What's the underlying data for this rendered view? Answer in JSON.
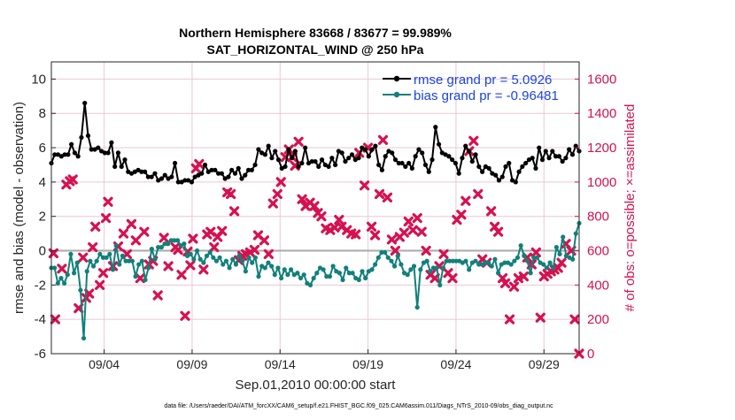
{
  "chart_data": {
    "type": "line",
    "title": "Northern Hemisphere 83668 / 83677 = 99.989%",
    "subtitle": "SAT_HORIZONTAL_WIND @ 250 hPa",
    "xlabel": "Sep.01,2010 00:00:00 start",
    "ylabel_left": "rmse and bias (model - observation)",
    "ylabel_right": "# of obs: o=possible; ×=assimilated",
    "footnote": "data file: /Users/raeder/DAI/ATM_forcXX/CAM6_setup/f.e21.FHIST_BGC.f09_025.CAM6assim.011/Diags_NTrS_2010-09/obs_diag_output.nc",
    "x_range_days": [
      1.0,
      31.0
    ],
    "ylim_left": [
      -6,
      11
    ],
    "ylim_right": [
      0,
      1700
    ],
    "x_ticks": [
      {
        "day": 4,
        "label": "09/04"
      },
      {
        "day": 9,
        "label": "09/09"
      },
      {
        "day": 14,
        "label": "09/14"
      },
      {
        "day": 19,
        "label": "09/19"
      },
      {
        "day": 24,
        "label": "09/24"
      },
      {
        "day": 29,
        "label": "09/29"
      }
    ],
    "y_ticks_left": [
      "-6",
      "-4",
      "-2",
      "0",
      "2",
      "4",
      "6",
      "8",
      "10"
    ],
    "y_ticks_right": [
      "0",
      "200",
      "400",
      "600",
      "800",
      "1000",
      "1200",
      "1400",
      "1600"
    ],
    "grid": true,
    "legend_position": "top-right",
    "colors": {
      "rmse": "#000000",
      "bias": "#11807a",
      "obs": "#d6114f",
      "zero_line": "#aaaaaa",
      "grid": "#e9c8d4",
      "legend_text": "#1a44e6"
    },
    "series": [
      {
        "name": "rmse grand pr = 5.0926",
        "values": [
          5.1,
          5.6,
          5.6,
          5.5,
          5.6,
          5.6,
          6.2,
          5.7,
          5.5,
          6.6,
          8.6,
          6.7,
          5.9,
          5.9,
          6.0,
          5.8,
          5.7,
          5.7,
          6.3,
          4.9,
          5.7,
          4.9,
          5.3,
          4.6,
          4.5,
          4.6,
          4.7,
          4.6,
          4.6,
          4.3,
          4.3,
          4.5,
          4.1,
          4.2,
          4.4,
          4.2,
          4.3,
          5.1,
          4.0,
          4.0,
          4.1,
          4.1,
          4.0,
          4.3,
          4.4,
          4.5,
          5.0,
          4.6,
          4.7,
          4.7,
          4.5,
          4.5,
          4.2,
          4.3,
          4.7,
          4.5,
          4.8,
          4.2,
          4.4,
          4.7,
          4.7,
          5.0,
          5.9,
          5.7,
          5.6,
          6.1,
          5.4,
          5.8,
          5.3,
          4.8,
          4.9,
          5.9,
          5.4,
          5.8,
          4.9,
          5.1,
          6.0,
          5.1,
          5.2,
          5.2,
          4.9,
          5.3,
          5.0,
          4.9,
          5.4,
          5.0,
          5.8,
          5.7,
          5.2,
          5.4,
          5.6,
          5.3,
          5.4,
          6.0,
          5.9,
          5.5,
          5.9,
          6.1,
          5.0,
          4.7,
          5.5,
          5.8,
          5.7,
          5.3,
          5.1,
          5.1,
          4.9,
          5.1,
          4.8,
          5.5,
          5.9,
          5.7,
          5.0,
          4.6,
          5.3,
          7.2,
          6.2,
          5.7,
          5.6,
          5.5,
          5.3,
          5.1,
          4.5,
          5.4,
          6.1,
          5.8,
          5.2,
          5.6,
          4.9,
          4.6,
          4.9,
          4.8,
          4.5,
          4.4,
          4.1,
          4.3,
          4.9,
          5.1,
          4.1,
          4.0,
          4.6,
          4.9,
          5.1,
          5.3,
          5.4,
          4.8,
          6.0,
          5.3,
          5.8,
          5.4,
          5.8,
          5.5,
          5.5,
          5.2,
          5.4,
          5.9,
          5.6,
          6.1,
          5.8
        ]
      },
      {
        "name": "bias grand pr = -0.96481",
        "values": [
          -1.0,
          -1.0,
          -1.9,
          -1.6,
          -1.9,
          -1.4,
          -0.2,
          -1.3,
          -0.7,
          -2.3,
          -5.1,
          -1.2,
          -0.6,
          -0.9,
          -0.6,
          -0.2,
          -0.4,
          -0.4,
          -0.2,
          -1.1,
          0.3,
          -0.8,
          -0.3,
          -0.6,
          -0.6,
          -0.6,
          -1.5,
          -0.8,
          -0.6,
          -1.7,
          -1.0,
          0.1,
          -0.5,
          0.2,
          0.2,
          0.4,
          0.4,
          0.6,
          0.6,
          0.6,
          0.3,
          0.4,
          -0.3,
          -0.2,
          -0.5,
          0.0,
          -0.5,
          -0.7,
          -0.3,
          -0.1,
          -0.4,
          -0.6,
          -0.4,
          -0.8,
          -0.6,
          -1.0,
          -0.5,
          -0.8,
          -0.3,
          -0.6,
          -1.2,
          -0.4,
          -0.7,
          -0.4,
          -1.5,
          -0.9,
          -1.0,
          -0.7,
          -0.9,
          -1.4,
          -1.0,
          -1.6,
          -1.1,
          -1.4,
          -1.1,
          -1.4,
          -1.3,
          -1.6,
          -1.4,
          -1.9,
          -2.0,
          -1.6,
          -1.3,
          -1.0,
          -1.1,
          -1.5,
          -1.5,
          -0.9,
          -1.2,
          -1.3,
          -1.7,
          -1.0,
          -1.3,
          -1.3,
          -1.6,
          -1.7,
          -1.2,
          -1.6,
          -1.2,
          -1.1,
          -0.8,
          -0.4,
          -0.1,
          -0.1,
          -0.4,
          -0.6,
          -0.9,
          -0.3,
          -0.8,
          -1.3,
          -1.4,
          -1.1,
          -0.9,
          -3.3,
          -1.1,
          -0.7,
          -0.6,
          -1.2,
          -1.0,
          -1.0,
          -2.0,
          -1.0,
          -0.6,
          -0.6,
          -0.6,
          -0.6,
          -0.6,
          -0.7,
          -0.6,
          -1.1,
          -0.7,
          -0.6,
          -0.8,
          -0.8,
          -0.7,
          -0.7,
          -0.9,
          -0.5,
          -1.3,
          -0.8,
          -0.7,
          -0.7,
          -0.8,
          -0.6,
          -0.4,
          0.3,
          -0.3,
          -0.6,
          -1.3,
          -0.4,
          -0.4,
          -0.7,
          -0.8,
          -1.0,
          -0.7,
          -1.0,
          0.2,
          -0.2,
          0.8,
          -0.3,
          -0.4,
          -0.5,
          1.0,
          1.6
        ]
      }
    ],
    "obs_assimilated": [
      {
        "day": 1.12,
        "n": 585
      },
      {
        "day": 1.22,
        "n": 200
      },
      {
        "day": 1.6,
        "n": 495
      },
      {
        "day": 1.85,
        "n": 985
      },
      {
        "day": 2.05,
        "n": 1005
      },
      {
        "day": 2.22,
        "n": 1015
      },
      {
        "day": 2.55,
        "n": 265
      },
      {
        "day": 2.8,
        "n": 560
      },
      {
        "day": 2.98,
        "n": 325
      },
      {
        "day": 3.15,
        "n": 350
      },
      {
        "day": 3.35,
        "n": 620
      },
      {
        "day": 3.5,
        "n": 740
      },
      {
        "day": 3.75,
        "n": 400
      },
      {
        "day": 3.95,
        "n": 470
      },
      {
        "day": 4.1,
        "n": 790
      },
      {
        "day": 4.22,
        "n": 885
      },
      {
        "day": 4.5,
        "n": 510
      },
      {
        "day": 4.8,
        "n": 625
      },
      {
        "day": 5.1,
        "n": 700
      },
      {
        "day": 5.3,
        "n": 580
      },
      {
        "day": 5.55,
        "n": 755
      },
      {
        "day": 5.8,
        "n": 660
      },
      {
        "day": 6.05,
        "n": 440
      },
      {
        "day": 6.28,
        "n": 710
      },
      {
        "day": 6.55,
        "n": 520
      },
      {
        "day": 6.78,
        "n": 540
      },
      {
        "day": 7.05,
        "n": 340
      },
      {
        "day": 7.4,
        "n": 675
      },
      {
        "day": 7.65,
        "n": 510
      },
      {
        "day": 8.05,
        "n": 620
      },
      {
        "day": 8.2,
        "n": 605
      },
      {
        "day": 8.4,
        "n": 460
      },
      {
        "day": 8.6,
        "n": 220
      },
      {
        "day": 8.75,
        "n": 595
      },
      {
        "day": 8.9,
        "n": 515
      },
      {
        "day": 9.05,
        "n": 670
      },
      {
        "day": 9.22,
        "n": 1080
      },
      {
        "day": 9.4,
        "n": 1105
      },
      {
        "day": 9.65,
        "n": 490
      },
      {
        "day": 9.85,
        "n": 695
      },
      {
        "day": 10.05,
        "n": 710
      },
      {
        "day": 10.25,
        "n": 620
      },
      {
        "day": 10.45,
        "n": 680
      },
      {
        "day": 10.7,
        "n": 715
      },
      {
        "day": 11.0,
        "n": 940
      },
      {
        "day": 11.2,
        "n": 930
      },
      {
        "day": 11.4,
        "n": 830
      },
      {
        "day": 11.65,
        "n": 545
      },
      {
        "day": 11.85,
        "n": 570
      },
      {
        "day": 12.05,
        "n": 580
      },
      {
        "day": 12.3,
        "n": 590
      },
      {
        "day": 12.55,
        "n": 605
      },
      {
        "day": 12.75,
        "n": 690
      },
      {
        "day": 13.1,
        "n": 660
      },
      {
        "day": 13.35,
        "n": 580
      },
      {
        "day": 13.6,
        "n": 875
      },
      {
        "day": 13.85,
        "n": 930
      },
      {
        "day": 14.05,
        "n": 1000
      },
      {
        "day": 14.3,
        "n": 1145
      },
      {
        "day": 14.5,
        "n": 1190
      },
      {
        "day": 14.7,
        "n": 1145
      },
      {
        "day": 14.85,
        "n": 1095
      },
      {
        "day": 15.05,
        "n": 1235
      },
      {
        "day": 15.25,
        "n": 900
      },
      {
        "day": 15.45,
        "n": 860
      },
      {
        "day": 15.7,
        "n": 880
      },
      {
        "day": 15.95,
        "n": 860
      },
      {
        "day": 16.15,
        "n": 820
      },
      {
        "day": 16.35,
        "n": 800
      },
      {
        "day": 16.6,
        "n": 730
      },
      {
        "day": 16.85,
        "n": 720
      },
      {
        "day": 17.1,
        "n": 735
      },
      {
        "day": 17.35,
        "n": 780
      },
      {
        "day": 17.5,
        "n": 740
      },
      {
        "day": 17.8,
        "n": 720
      },
      {
        "day": 18.05,
        "n": 700
      },
      {
        "day": 18.3,
        "n": 695
      },
      {
        "day": 18.5,
        "n": 1170
      },
      {
        "day": 18.8,
        "n": 980
      },
      {
        "day": 19.0,
        "n": 1200
      },
      {
        "day": 19.2,
        "n": 740
      },
      {
        "day": 19.4,
        "n": 690
      },
      {
        "day": 19.65,
        "n": 930
      },
      {
        "day": 19.85,
        "n": 1245
      },
      {
        "day": 20.1,
        "n": 910
      },
      {
        "day": 20.35,
        "n": 665
      },
      {
        "day": 20.55,
        "n": 600
      },
      {
        "day": 20.8,
        "n": 680
      },
      {
        "day": 21.05,
        "n": 705
      },
      {
        "day": 21.3,
        "n": 770
      },
      {
        "day": 21.55,
        "n": 720
      },
      {
        "day": 21.8,
        "n": 790
      },
      {
        "day": 22.05,
        "n": 710
      },
      {
        "day": 22.3,
        "n": 600
      },
      {
        "day": 22.55,
        "n": 460
      },
      {
        "day": 22.8,
        "n": 440
      },
      {
        "day": 23.05,
        "n": 510
      },
      {
        "day": 23.3,
        "n": 580
      },
      {
        "day": 23.55,
        "n": 470
      },
      {
        "day": 23.8,
        "n": 440
      },
      {
        "day": 24.05,
        "n": 780
      },
      {
        "day": 24.3,
        "n": 810
      },
      {
        "day": 24.55,
        "n": 890
      },
      {
        "day": 24.75,
        "n": 1180
      },
      {
        "day": 25.0,
        "n": 1240
      },
      {
        "day": 25.25,
        "n": 930
      },
      {
        "day": 25.5,
        "n": 550
      },
      {
        "day": 25.75,
        "n": 530
      },
      {
        "day": 26.0,
        "n": 830
      },
      {
        "day": 26.2,
        "n": 740
      },
      {
        "day": 26.4,
        "n": 710
      },
      {
        "day": 26.65,
        "n": 440
      },
      {
        "day": 26.8,
        "n": 410
      },
      {
        "day": 27.05,
        "n": 200
      },
      {
        "day": 27.3,
        "n": 390
      },
      {
        "day": 27.55,
        "n": 440
      },
      {
        "day": 27.85,
        "n": 450
      },
      {
        "day": 28.05,
        "n": 560
      },
      {
        "day": 28.3,
        "n": 520
      },
      {
        "day": 28.55,
        "n": 590
      },
      {
        "day": 28.8,
        "n": 210
      },
      {
        "day": 29.0,
        "n": 450
      },
      {
        "day": 29.2,
        "n": 465
      },
      {
        "day": 29.4,
        "n": 480
      },
      {
        "day": 29.6,
        "n": 490
      },
      {
        "day": 29.8,
        "n": 500
      },
      {
        "day": 30.0,
        "n": 530
      },
      {
        "day": 30.25,
        "n": 640
      },
      {
        "day": 30.55,
        "n": 600
      },
      {
        "day": 30.75,
        "n": 200
      },
      {
        "day": 31.0,
        "n": 0
      }
    ]
  }
}
